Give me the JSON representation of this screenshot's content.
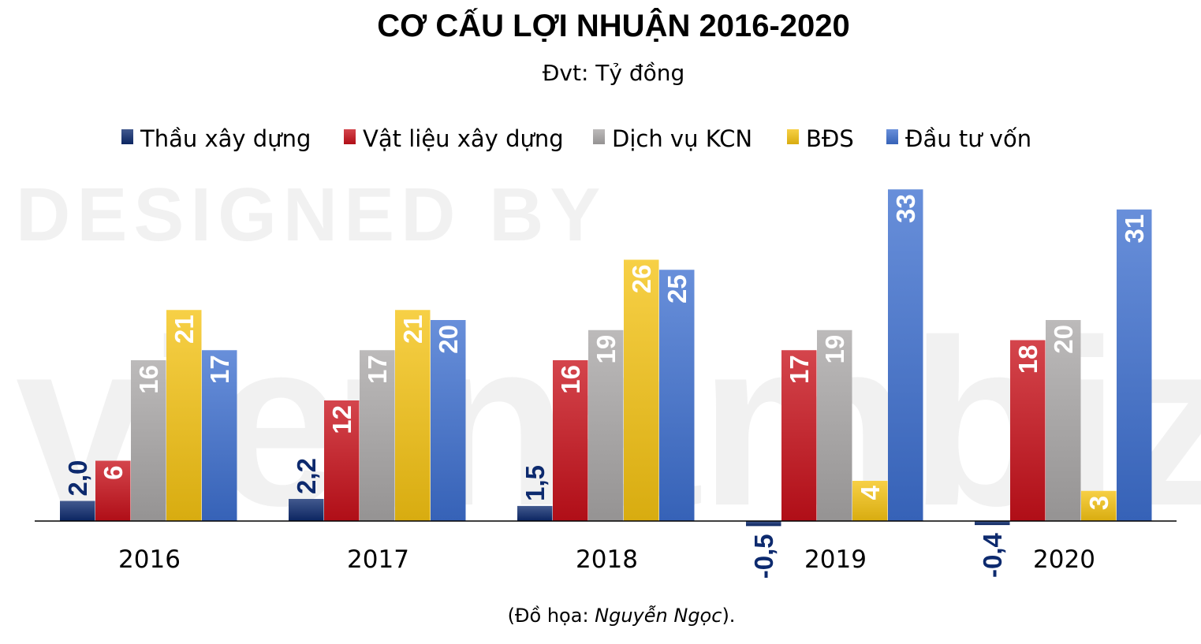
{
  "chart_data": {
    "type": "bar",
    "title": "CƠ CẤU LỢI NHUẬN 2016-2020",
    "subtitle": "Đvt: Tỷ đồng",
    "categories": [
      "2016",
      "2017",
      "2018",
      "2019",
      "2020"
    ],
    "series": [
      {
        "name": "Thầu xây dựng",
        "values": [
          2.0,
          2.2,
          1.5,
          -0.5,
          -0.4
        ],
        "labels": [
          "2,0",
          "2,2",
          "1,5",
          "-0,5",
          "-0,4"
        ],
        "color": "#0d2a6e",
        "label_color": "#0d2a6e"
      },
      {
        "name": "Vật liệu xây dựng",
        "values": [
          6,
          12,
          16,
          17,
          18
        ],
        "labels": [
          "6",
          "12",
          "16",
          "17",
          "18"
        ],
        "color": "#c8101a",
        "label_color": "#ffffff"
      },
      {
        "name": "Dịch vụ KCN",
        "values": [
          16,
          17,
          19,
          19,
          20
        ],
        "labels": [
          "16",
          "17",
          "19",
          "19",
          "20"
        ],
        "color": "#a9a7a7",
        "label_color": "#ffffff"
      },
      {
        "name": "BĐS",
        "values": [
          21,
          21,
          26,
          4,
          3
        ],
        "labels": [
          "21",
          "21",
          "26",
          "4",
          "3"
        ],
        "color": "#f5c312",
        "label_color": "#ffffff"
      },
      {
        "name": "Đầu tư vốn",
        "values": [
          17,
          20,
          25,
          33,
          31
        ],
        "labels": [
          "17",
          "20",
          "25",
          "33",
          "31"
        ],
        "color": "#3d6fd0",
        "label_color": "#ffffff"
      }
    ],
    "ylim": [
      -0.5,
      33
    ],
    "grid": false,
    "legend_position": "top",
    "source_prefix": "(Đồ họa: ",
    "source_author": "Nguyễn Ngọc",
    "source_suffix": ")."
  },
  "watermark": {
    "line1": "DESIGNED BY",
    "line2": "vietnambiz"
  }
}
